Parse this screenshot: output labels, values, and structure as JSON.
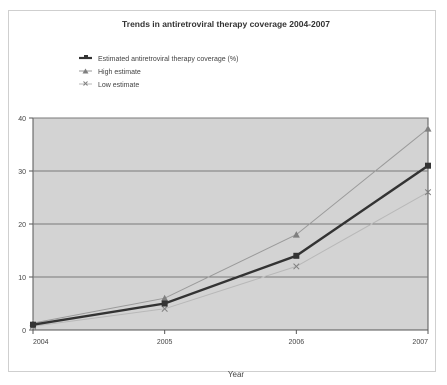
{
  "chart_data": {
    "type": "line",
    "title": "Trends in antiretroviral therapy coverage 2004-2007",
    "xlabel": "Year",
    "ylabel": "",
    "categories": [
      "2004",
      "2005",
      "2006",
      "2007"
    ],
    "x": [
      2004,
      2005,
      2006,
      2007
    ],
    "ylim": [
      0,
      40
    ],
    "yticks": [
      0,
      10,
      20,
      30,
      40
    ],
    "grid": true,
    "legend_position": "top",
    "series": [
      {
        "name": "Estimated antiretroviral therapy coverage (%)",
        "values": [
          1,
          5,
          14,
          31
        ],
        "color": "#333333",
        "marker": "square",
        "line_style": "solid"
      },
      {
        "name": "High estimate",
        "values": [
          1.3,
          6,
          18,
          38
        ],
        "color": "#9a9a9a",
        "marker": "triangle",
        "line_style": "solid"
      },
      {
        "name": "Low estimate",
        "values": [
          0.7,
          4,
          12,
          26
        ],
        "color": "#b8b8b8",
        "marker": "x",
        "line_style": "solid"
      }
    ],
    "colors": {
      "plot_background": "#d3d3d3",
      "gridline": "#7a7a7a",
      "axis": "#555555",
      "frame_border": "#cfcfcf"
    }
  }
}
